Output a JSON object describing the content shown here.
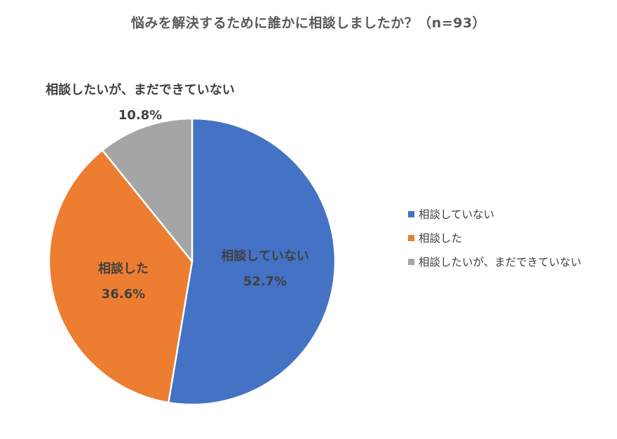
{
  "chart_data": {
    "type": "pie",
    "title": "悩みを解決するために誰かに相談しましたか？（n=93）",
    "slices": [
      {
        "name": "相談していない",
        "value": 52.7,
        "label": "52.7%",
        "color": "#4472C4"
      },
      {
        "name": "相談した",
        "value": 36.6,
        "label": "36.6%",
        "color": "#ED7D31"
      },
      {
        "name": "相談したいが、まだできていない",
        "value": 10.8,
        "label": "10.8%",
        "color": "#A5A5A5"
      }
    ],
    "legend_position": "right"
  }
}
